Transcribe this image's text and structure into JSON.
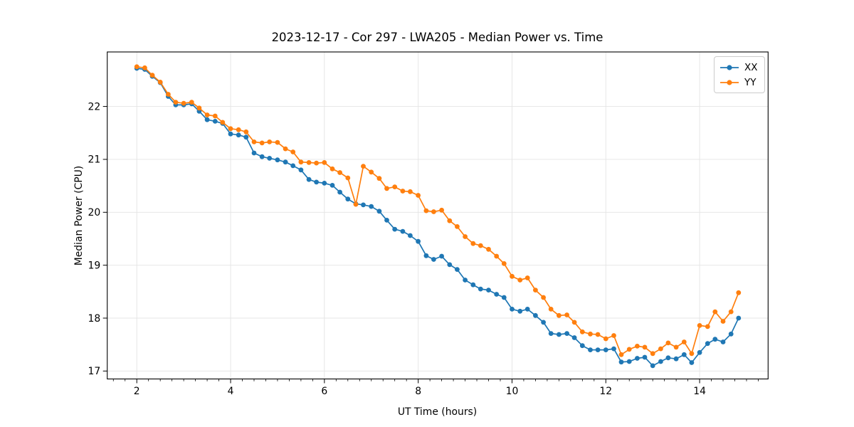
{
  "title": "2023-12-17 - Cor 297 - LWA205 - Median Power vs. Time",
  "chart_data": {
    "type": "line",
    "title": "2023-12-17 - Cor 297 - LWA205 - Median Power vs. Time",
    "xlabel": "UT Time (hours)",
    "ylabel": "Median Power (CPU)",
    "xlim": [
      1.37,
      15.46
    ],
    "ylim": [
      16.85,
      23.03
    ],
    "x_ticks": [
      2,
      4,
      6,
      8,
      10,
      12,
      14
    ],
    "y_ticks": [
      17,
      18,
      19,
      20,
      21,
      22
    ],
    "x_minor_tick_step": 0.25,
    "grid": true,
    "legend_position": "upper right",
    "marker": "o",
    "x": [
      2.0,
      2.17,
      2.33,
      2.5,
      2.67,
      2.83,
      3.0,
      3.17,
      3.33,
      3.5,
      3.67,
      3.83,
      4.0,
      4.17,
      4.33,
      4.5,
      4.67,
      4.83,
      5.0,
      5.17,
      5.33,
      5.5,
      5.67,
      5.83,
      6.0,
      6.17,
      6.33,
      6.5,
      6.67,
      6.83,
      7.0,
      7.17,
      7.33,
      7.5,
      7.67,
      7.83,
      8.0,
      8.17,
      8.33,
      8.5,
      8.67,
      8.83,
      9.0,
      9.17,
      9.33,
      9.5,
      9.67,
      9.83,
      10.0,
      10.17,
      10.33,
      10.5,
      10.67,
      10.83,
      11.0,
      11.17,
      11.33,
      11.5,
      11.67,
      11.83,
      12.0,
      12.17,
      12.33,
      12.5,
      12.67,
      12.83,
      13.0,
      13.17,
      13.33,
      13.5,
      13.67,
      13.83,
      14.0,
      14.17,
      14.33,
      14.5,
      14.67,
      14.83
    ],
    "series": [
      {
        "name": "XX",
        "color": "#1f77b4",
        "values": [
          22.72,
          22.7,
          22.57,
          22.45,
          22.19,
          22.03,
          22.03,
          22.05,
          21.91,
          21.75,
          21.72,
          21.68,
          21.48,
          21.46,
          21.42,
          21.12,
          21.05,
          21.02,
          20.99,
          20.95,
          20.88,
          20.8,
          20.62,
          20.57,
          20.55,
          20.51,
          20.38,
          20.25,
          20.16,
          20.14,
          20.11,
          20.02,
          19.85,
          19.68,
          19.64,
          19.56,
          19.45,
          19.18,
          19.11,
          19.17,
          19.01,
          18.92,
          18.72,
          18.63,
          18.55,
          18.53,
          18.45,
          18.39,
          18.17,
          18.13,
          18.17,
          18.05,
          17.92,
          17.71,
          17.69,
          17.71,
          17.63,
          17.48,
          17.4,
          17.4,
          17.4,
          17.42,
          17.17,
          17.18,
          17.24,
          17.26,
          17.1,
          17.18,
          17.25,
          17.23,
          17.31,
          17.16,
          17.35,
          17.52,
          17.6,
          17.55,
          17.7,
          18.0
        ]
      },
      {
        "name": "YY",
        "color": "#ff7f0e",
        "values": [
          22.75,
          22.73,
          22.59,
          22.46,
          22.23,
          22.08,
          22.06,
          22.08,
          21.97,
          21.84,
          21.82,
          21.7,
          21.58,
          21.56,
          21.52,
          21.33,
          21.31,
          21.33,
          21.32,
          21.2,
          21.14,
          20.95,
          20.94,
          20.93,
          20.94,
          20.82,
          20.75,
          20.65,
          20.15,
          20.87,
          20.76,
          20.64,
          20.45,
          20.48,
          20.4,
          20.39,
          20.32,
          20.03,
          20.01,
          20.04,
          19.84,
          19.73,
          19.54,
          19.41,
          19.37,
          19.3,
          19.17,
          19.03,
          18.79,
          18.72,
          18.76,
          18.53,
          18.39,
          18.17,
          18.05,
          18.06,
          17.92,
          17.74,
          17.7,
          17.69,
          17.61,
          17.67,
          17.31,
          17.41,
          17.47,
          17.45,
          17.33,
          17.42,
          17.53,
          17.45,
          17.55,
          17.33,
          17.86,
          17.84,
          18.12,
          17.94,
          18.12,
          18.48
        ]
      }
    ],
    "colors": {
      "grid": "#e4e4e4",
      "spine": "#000000",
      "background": "#ffffff"
    }
  },
  "legend": {
    "items": [
      {
        "label": "XX",
        "color": "#1f77b4"
      },
      {
        "label": "YY",
        "color": "#ff7f0e"
      }
    ]
  }
}
